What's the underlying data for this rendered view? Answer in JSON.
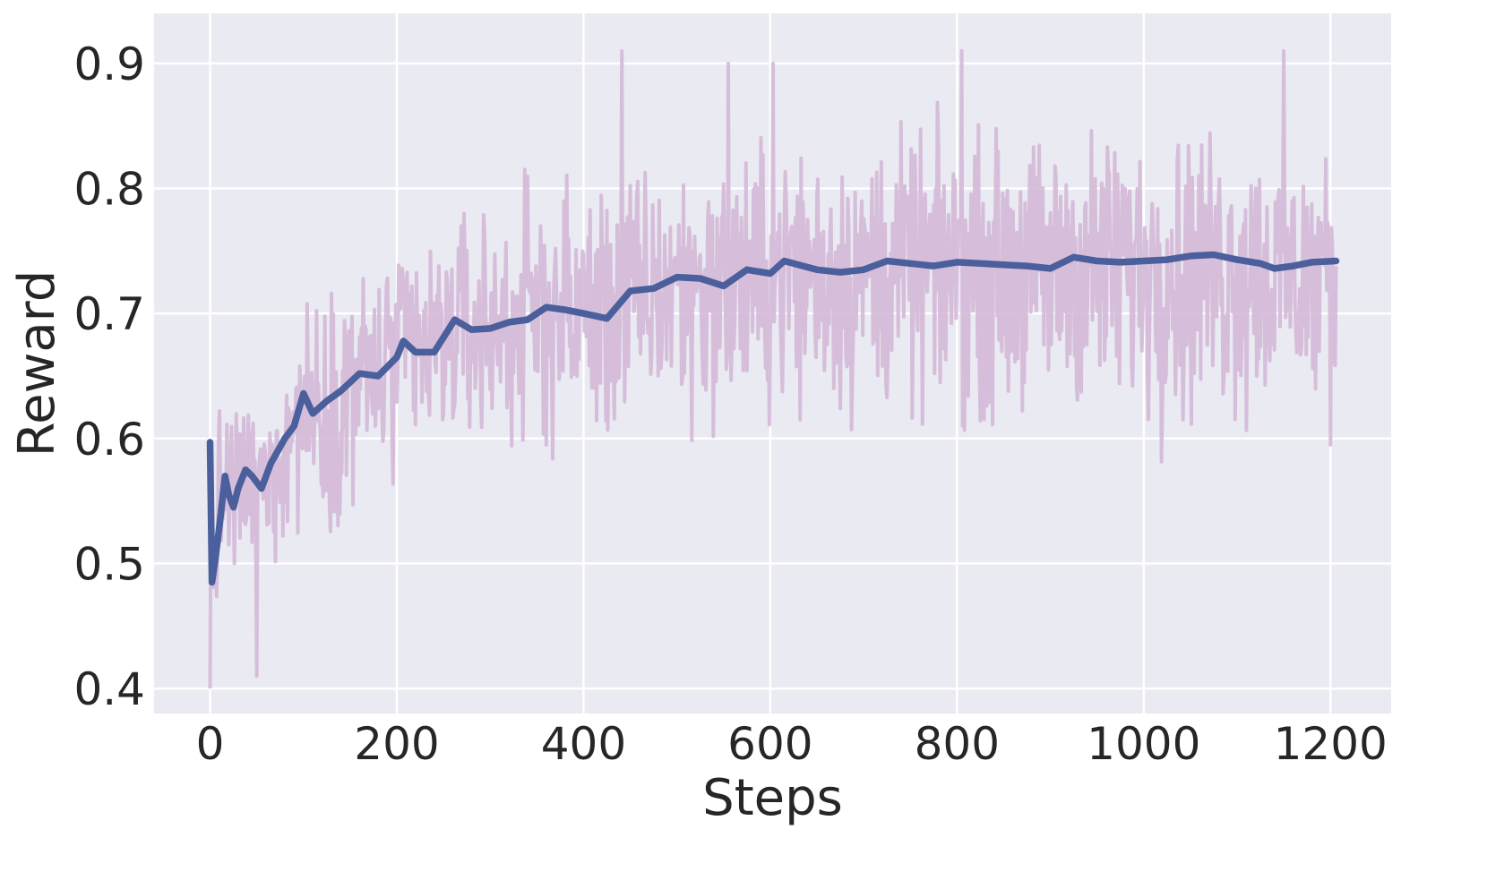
{
  "chart_data": {
    "type": "line",
    "title": "",
    "xlabel": "Steps",
    "ylabel": "Reward",
    "xlim": [
      -60,
      1265
    ],
    "ylim": [
      0.38,
      0.94
    ],
    "xticks": [
      0,
      200,
      400,
      600,
      800,
      1000,
      1200
    ],
    "yticks": [
      0.4,
      0.5,
      0.6,
      0.7,
      0.8,
      0.9
    ],
    "grid": true,
    "legend": "none",
    "colors": {
      "background": "#eaeaf2",
      "grid": "#ffffff",
      "raw": "#d4b9d8",
      "smoothed": "#4a5f9b"
    },
    "series": [
      {
        "role": "raw",
        "x_start": 0,
        "x_end": 1206,
        "count": 1207,
        "envelope": {
          "x": [
            0,
            10,
            25,
            50,
            75,
            100,
            150,
            200,
            250,
            300,
            400,
            500,
            600,
            700,
            800,
            900,
            1000,
            1100,
            1206
          ],
          "upper": [
            0.6,
            0.65,
            0.66,
            0.64,
            0.67,
            0.74,
            0.77,
            0.79,
            0.8,
            0.83,
            0.85,
            0.85,
            0.87,
            0.88,
            0.88,
            0.88,
            0.89,
            0.88,
            0.85
          ],
          "lower": [
            0.4,
            0.46,
            0.44,
            0.45,
            0.47,
            0.5,
            0.5,
            0.52,
            0.55,
            0.55,
            0.55,
            0.56,
            0.57,
            0.57,
            0.57,
            0.57,
            0.56,
            0.55,
            0.55
          ]
        },
        "peaks": [
          {
            "x": 0,
            "y": 0.4
          },
          {
            "x": 50,
            "y": 0.41
          },
          {
            "x": 441,
            "y": 0.91
          },
          {
            "x": 555,
            "y": 0.9
          },
          {
            "x": 603,
            "y": 0.9
          },
          {
            "x": 805,
            "y": 0.91
          },
          {
            "x": 1150,
            "y": 0.91
          }
        ]
      },
      {
        "role": "smoothed",
        "x": [
          0,
          2,
          5,
          10,
          16,
          20,
          25,
          30,
          38,
          45,
          55,
          65,
          80,
          90,
          100,
          110,
          125,
          140,
          160,
          180,
          200,
          207,
          220,
          240,
          262,
          280,
          300,
          320,
          340,
          360,
          380,
          400,
          425,
          450,
          475,
          500,
          525,
          550,
          575,
          600,
          615,
          650,
          675,
          700,
          725,
          750,
          775,
          800,
          825,
          850,
          875,
          900,
          925,
          950,
          975,
          1000,
          1025,
          1050,
          1075,
          1100,
          1125,
          1140,
          1160,
          1180,
          1206
        ],
        "y": [
          0.597,
          0.485,
          0.5,
          0.53,
          0.57,
          0.555,
          0.545,
          0.56,
          0.575,
          0.57,
          0.56,
          0.58,
          0.6,
          0.61,
          0.636,
          0.62,
          0.63,
          0.638,
          0.652,
          0.65,
          0.665,
          0.678,
          0.669,
          0.669,
          0.695,
          0.687,
          0.688,
          0.693,
          0.695,
          0.705,
          0.703,
          0.7,
          0.696,
          0.718,
          0.72,
          0.729,
          0.728,
          0.722,
          0.735,
          0.732,
          0.742,
          0.735,
          0.733,
          0.735,
          0.742,
          0.74,
          0.738,
          0.741,
          0.74,
          0.739,
          0.738,
          0.736,
          0.745,
          0.742,
          0.741,
          0.742,
          0.743,
          0.746,
          0.747,
          0.743,
          0.74,
          0.736,
          0.738,
          0.741,
          0.742
        ]
      }
    ]
  }
}
